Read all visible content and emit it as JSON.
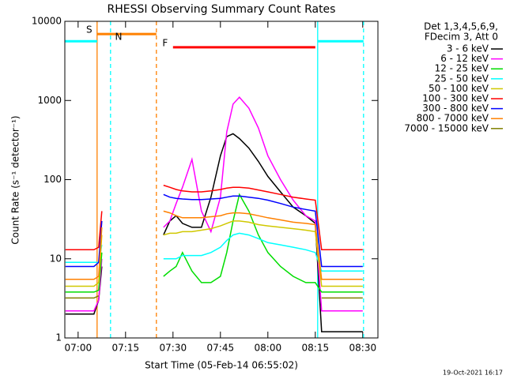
{
  "chart_data": {
    "type": "line",
    "title": "RHESSI Observing Summary Count Rates",
    "xlabel": "Start Time (05-Feb-14 06:55:02)",
    "ylabel": "Count Rate (s⁻¹ detector⁻¹)",
    "legend_header": [
      "Det 1,3,4,5,6,9,",
      "FDecim 3, Att 0"
    ],
    "footer": "19-Oct-2021 16:17",
    "yscale": "log",
    "xlim": [
      415.8,
      514.8
    ],
    "ylim": [
      1,
      10000
    ],
    "yticks": [
      1,
      10,
      100,
      1000,
      10000
    ],
    "xticks": [
      {
        "value": 420,
        "label": "07:00"
      },
      {
        "value": 435,
        "label": "07:15"
      },
      {
        "value": 450,
        "label": "07:30"
      },
      {
        "value": 465,
        "label": "07:45"
      },
      {
        "value": 480,
        "label": "08:00"
      },
      {
        "value": 495,
        "label": "08:15"
      },
      {
        "value": 510,
        "label": "08:30"
      }
    ],
    "x": [
      416,
      419,
      422,
      425,
      426.5,
      427.5,
      437,
      447,
      449,
      451,
      453,
      456,
      459,
      462,
      465,
      467,
      469,
      471,
      474,
      477,
      480,
      484,
      488,
      492,
      495,
      497,
      500,
      503,
      506,
      510
    ],
    "series": [
      {
        "name": "3 - 6 keV",
        "color": "#000000",
        "values": [
          2,
          2,
          2,
          2,
          3,
          8,
          null,
          20,
          30,
          35,
          28,
          25,
          25,
          60,
          200,
          350,
          380,
          330,
          250,
          170,
          110,
          70,
          45,
          35,
          28,
          1.2,
          1.2,
          1.2,
          1.2,
          1.2
        ]
      },
      {
        "name": "6 - 12 keV",
        "color": "#ff00ff",
        "values": [
          2.2,
          2.2,
          2.2,
          2.2,
          3,
          10,
          null,
          25,
          30,
          50,
          80,
          180,
          40,
          22,
          60,
          400,
          900,
          1100,
          800,
          450,
          200,
          100,
          55,
          35,
          30,
          2.2,
          2.2,
          2.2,
          2.2,
          2.2
        ]
      },
      {
        "name": "12 - 25 keV",
        "color": "#00dd00",
        "values": [
          3.8,
          3.8,
          3.8,
          3.8,
          4,
          12,
          null,
          6,
          7,
          8,
          12,
          7,
          5,
          5,
          6,
          12,
          30,
          65,
          40,
          20,
          12,
          8,
          6,
          5,
          5,
          3.8,
          3.8,
          3.8,
          3.8,
          3.8
        ]
      },
      {
        "name": "25 - 50 keV",
        "color": "#00ffff",
        "values": [
          9,
          9,
          9,
          9,
          9,
          15,
          null,
          10,
          10,
          10,
          11,
          11,
          11,
          12,
          14,
          17,
          20,
          21,
          20,
          18,
          16,
          15,
          14,
          13,
          12,
          7,
          7,
          7,
          7,
          7
        ]
      },
      {
        "name": "50 - 100 keV",
        "color": "#d0c800",
        "values": [
          4.5,
          4.5,
          4.5,
          4.5,
          5,
          20,
          null,
          20,
          21,
          21,
          22,
          22,
          23,
          24,
          26,
          28,
          30,
          30,
          29,
          27,
          26,
          25,
          24,
          23,
          22,
          4.5,
          4.5,
          4.5,
          4.5,
          4.5
        ]
      },
      {
        "name": "100 - 300 keV",
        "color": "#ff0000",
        "values": [
          13,
          13,
          13,
          13,
          14,
          40,
          null,
          85,
          80,
          75,
          72,
          70,
          70,
          72,
          75,
          78,
          80,
          80,
          78,
          74,
          70,
          65,
          60,
          57,
          55,
          13,
          13,
          13,
          13,
          13
        ]
      },
      {
        "name": "300 - 800 keV",
        "color": "#0000ff",
        "values": [
          8,
          8,
          8,
          8,
          9,
          30,
          null,
          65,
          60,
          58,
          57,
          56,
          56,
          57,
          58,
          60,
          62,
          62,
          60,
          58,
          55,
          50,
          45,
          42,
          40,
          8,
          8,
          8,
          8,
          8
        ]
      },
      {
        "name": "800 - 7000 keV",
        "color": "#ff8000",
        "values": [
          5.5,
          5.5,
          5.5,
          5.5,
          6,
          25,
          null,
          40,
          38,
          35,
          33,
          33,
          33,
          34,
          35,
          37,
          38,
          38,
          37,
          35,
          33,
          31,
          29,
          28,
          27,
          5.5,
          5.5,
          5.5,
          5.5,
          5.5
        ]
      },
      {
        "name": "7000 - 15000 keV",
        "color": "#808000",
        "values": [
          3.2,
          3.2,
          3.2,
          3.2,
          3.4,
          null,
          null,
          null,
          null,
          null,
          null,
          null,
          null,
          null,
          null,
          null,
          null,
          null,
          null,
          null,
          null,
          null,
          null,
          null,
          null,
          3.2,
          3.2,
          3.2,
          3.2,
          3.2
        ]
      }
    ],
    "bars": [
      {
        "start": 415.8,
        "end": 426,
        "level": 5600,
        "color": "#00ffff"
      },
      {
        "start": 426,
        "end": 444.75,
        "level": 6900,
        "color": "#ff8000"
      },
      {
        "start": 450,
        "end": 495,
        "level": 4700,
        "color": "#ff0000"
      },
      {
        "start": 495.75,
        "end": 510.25,
        "level": 5600,
        "color": "#00ffff"
      }
    ],
    "vlines": [
      {
        "x": 426,
        "color": "#ff8000",
        "dashed": false
      },
      {
        "x": 430.25,
        "color": "#00ffff",
        "dashed": true
      },
      {
        "x": 444.75,
        "color": "#ff8000",
        "dashed": true
      },
      {
        "x": 495.75,
        "color": "#00ffff",
        "dashed": false
      },
      {
        "x": 510.25,
        "color": "#00ffff",
        "dashed": true
      }
    ],
    "markers": [
      {
        "label": "S",
        "x": 423.5,
        "y": 6900,
        "color": "#ff8000"
      },
      {
        "label": "N",
        "x": 432.8,
        "y": 5600,
        "color": "#00ffff"
      },
      {
        "label": "F",
        "x": 447.5,
        "y": 4700,
        "color": "#ff0000"
      }
    ]
  }
}
